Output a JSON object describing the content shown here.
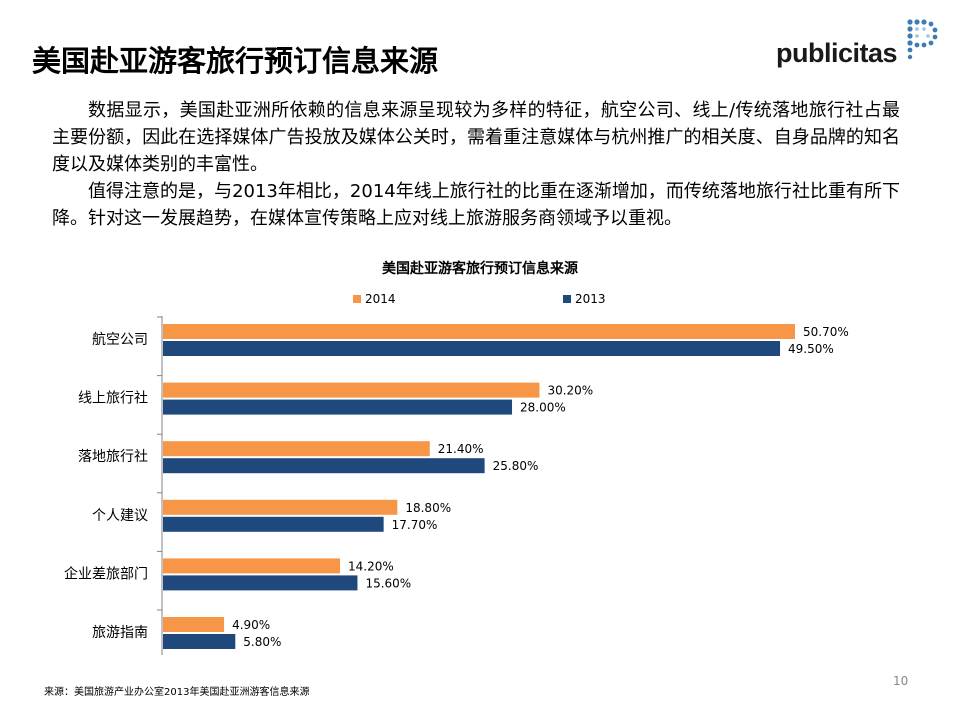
{
  "slide": {
    "title": "美国赴亚游客旅行预订信息来源",
    "logo_text": "publicitas",
    "paragraphs": [
      "数据显示，美国赴亚洲所依赖的信息来源呈现较为多样的特征，航空公司、线上/传统落地旅行社占最主要份额，因此在选择媒体广告投放及媒体公关时，需着重注意媒体与杭州推广的相关度、自身品牌的知名度以及媒体类别的丰富性。",
      "值得注意的是，与2013年相比，2014年线上旅行社的比重在逐渐增加，而传统落地旅行社比重有所下降。针对这一发展趋势，在媒体宣传策略上应对线上旅游服务商领域予以重视。"
    ],
    "source": "来源：美国旅游产业办公室2013年美国赴亚洲游客信息来源",
    "page_number": "10"
  },
  "colors": {
    "series_2014": "#F79646",
    "series_2013": "#1F497D",
    "logo_dot": "#3E7CB1"
  },
  "chart_data": {
    "type": "bar",
    "orientation": "horizontal",
    "title": "美国赴亚游客旅行预订信息来源",
    "categories": [
      "航空公司",
      "线上旅行社",
      "落地旅行社",
      "个人建议",
      "企业差旅部门",
      "旅游指南"
    ],
    "series": [
      {
        "name": "2014",
        "values": [
          50.7,
          30.2,
          21.4,
          18.8,
          14.2,
          4.9
        ],
        "labels": [
          "50.70%",
          "30.20%",
          "21.40%",
          "18.80%",
          "14.20%",
          "4.90%"
        ]
      },
      {
        "name": "2013",
        "values": [
          49.5,
          28.0,
          25.8,
          17.7,
          15.6,
          5.8
        ],
        "labels": [
          "49.50%",
          "28.00%",
          "25.80%",
          "17.70%",
          "15.60%",
          "5.80%"
        ]
      }
    ],
    "xlim": [
      0,
      55
    ],
    "legend": "top",
    "grid": false
  }
}
